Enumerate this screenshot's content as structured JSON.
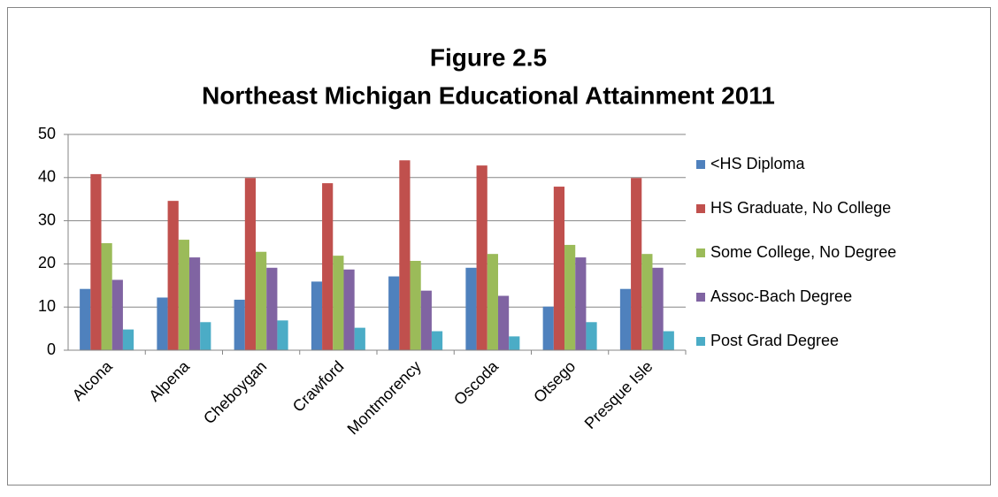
{
  "chart_data": {
    "type": "bar",
    "title": "Figure 2.5",
    "subtitle": "Northeast Michigan Educational Attainment 2011",
    "categories": [
      "Alcona",
      "Alpena",
      "Cheboygan",
      "Crawford",
      "Montmorency",
      "Oscoda",
      "Otsego",
      "Presque Isle"
    ],
    "series": [
      {
        "name": "<HS Diploma",
        "color": "#4F81BD",
        "values": [
          14.2,
          12.2,
          11.7,
          15.9,
          17.1,
          19.1,
          10.1,
          14.2
        ]
      },
      {
        "name": "HS Graduate, No College",
        "color": "#C0504D",
        "values": [
          40.8,
          34.6,
          39.9,
          38.7,
          44.0,
          42.8,
          37.9,
          39.9
        ]
      },
      {
        "name": "Some College, No Degree",
        "color": "#9BBB59",
        "values": [
          24.8,
          25.6,
          22.8,
          21.9,
          20.7,
          22.3,
          24.4,
          22.3
        ]
      },
      {
        "name": "Assoc-Bach Degree",
        "color": "#8064A2",
        "values": [
          16.3,
          21.5,
          19.1,
          18.7,
          13.8,
          12.6,
          21.5,
          19.1
        ]
      },
      {
        "name": "Post Grad Degree",
        "color": "#4BACC6",
        "values": [
          4.8,
          6.5,
          6.9,
          5.2,
          4.4,
          3.2,
          6.5,
          4.4
        ]
      }
    ],
    "ylim": [
      0,
      50
    ],
    "yticks": [
      0,
      10,
      20,
      30,
      40,
      50
    ],
    "grid": true,
    "legend": "right"
  }
}
